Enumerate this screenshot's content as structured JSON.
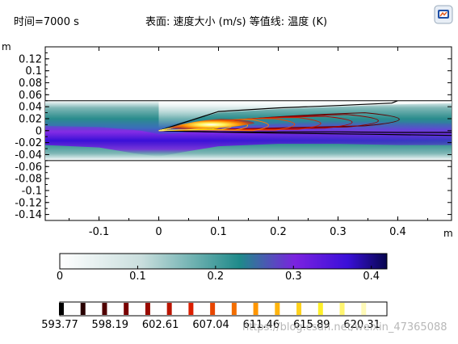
{
  "header": {
    "time_label": "时间=7000 s",
    "plot_label": "表面: 速度大小 (m/s)  等值线: 温度 (K)"
  },
  "icons": {
    "corner": "comsol-logo-icon"
  },
  "watermark": "https://blog.csdn.net/weixin_47365088",
  "chart_data": {
    "type": "heatmap",
    "title": "",
    "xlabel": "m",
    "ylabel": "m",
    "xlim": [
      -0.19,
      0.49
    ],
    "ylim": [
      -0.15,
      0.14
    ],
    "x_ticks": [
      -0.1,
      0,
      0.1,
      0.2,
      0.3,
      0.4
    ],
    "x_tick_labels": [
      "-0.1",
      "0",
      "0.1",
      "0.2",
      "0.3",
      "0.4"
    ],
    "y_ticks": [
      0.12,
      0.1,
      0.08,
      0.06,
      0.04,
      0.02,
      0,
      -0.02,
      -0.04,
      -0.06,
      -0.08,
      -0.1,
      -0.12,
      -0.14
    ],
    "y_tick_labels": [
      "0.12",
      "0.1",
      "0.08",
      "0.06",
      "0.04",
      "0.02",
      "0",
      "-0.02",
      "-0.04",
      "-0.06",
      "-0.08",
      "-0.1",
      "-0.12",
      "-0.14"
    ],
    "channel": {
      "y_min": -0.05,
      "y_max": 0.05
    },
    "surface": {
      "quantity": "速度大小 (m/s)",
      "range": [
        0,
        0.42
      ],
      "colormap": [
        "#ffffff",
        "#2a8c8c",
        "#7b22e0",
        "#3a10d8",
        "#08055a"
      ]
    },
    "isolines": {
      "quantity": "温度 (K)",
      "range": [
        593.77,
        622.5
      ]
    },
    "colorbars": [
      {
        "name": "velocity",
        "ticks": [
          0,
          0.1,
          0.2,
          0.3,
          0.4
        ],
        "tick_labels": [
          "0",
          "0.1",
          "0.2",
          "0.3",
          "0.4"
        ]
      },
      {
        "name": "temperature",
        "ticks": [
          593.77,
          598.19,
          602.61,
          607.04,
          611.46,
          615.89,
          620.31
        ],
        "tick_labels": [
          "593.77",
          "598.19",
          "602.61",
          "607.04",
          "611.46",
          "615.89",
          "620.31"
        ]
      }
    ]
  }
}
